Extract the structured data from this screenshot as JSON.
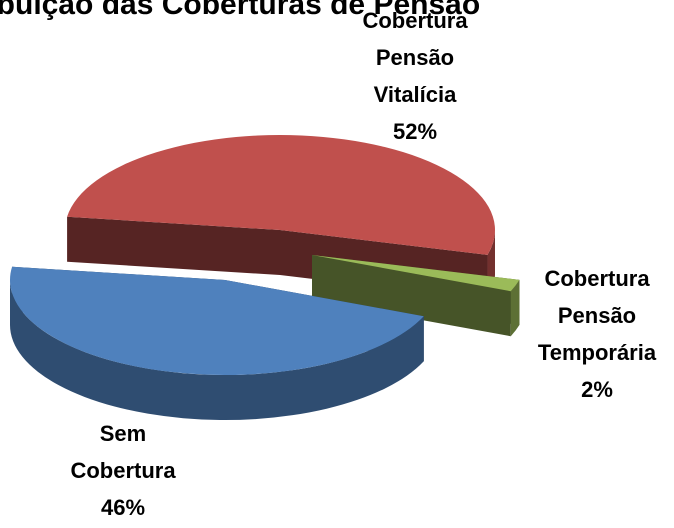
{
  "chart_data": {
    "type": "pie",
    "title": "Distribuição das Coberturas de Pensão",
    "categories": [
      "Cobertura Pensão Vitalícia",
      "Cobertura Pensão Temporária",
      "Sem Cobertura"
    ],
    "values": [
      52,
      2,
      46
    ],
    "value_labels": [
      "52%",
      "2%",
      "46%"
    ],
    "colors": [
      "#c0504d",
      "#9bbb59",
      "#4f81bd"
    ]
  }
}
